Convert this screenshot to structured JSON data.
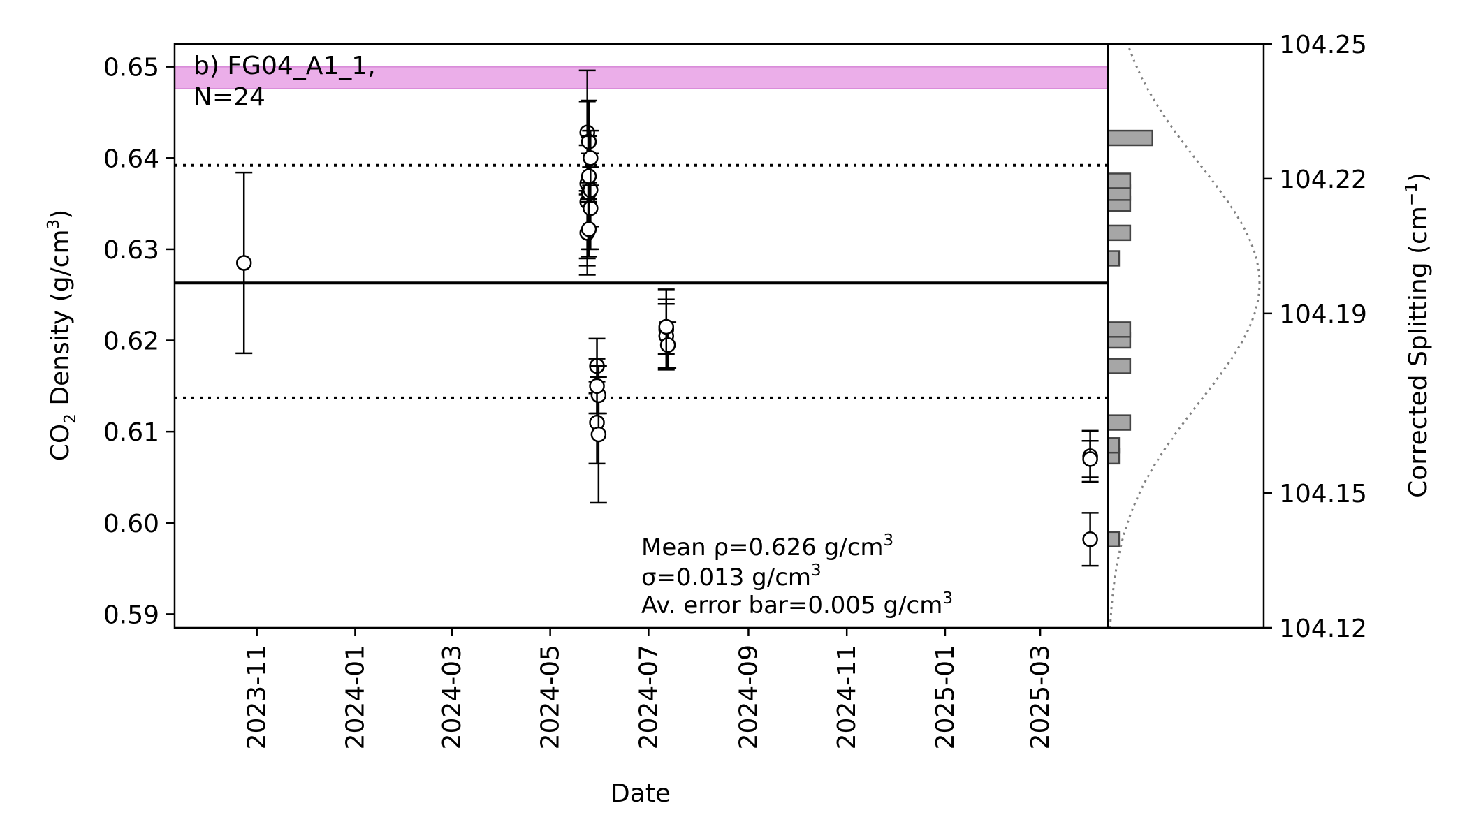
{
  "chart_data": {
    "type": "scatter",
    "panel_label": "b) FG04_A1_1,",
    "count_label": "N=24",
    "xlabel": "Date",
    "ylabel": {
      "prefix": "CO",
      "sub": "2",
      "suffix": " Density (g/cm",
      "sup": "3",
      "close": ")"
    },
    "y2label": {
      "prefix": "Corrected Splitting (cm",
      "sup": "−1",
      "close": ")"
    },
    "x_axis": {
      "type": "date",
      "range": [
        "2023-09-11",
        "2025-04-12"
      ],
      "ticks": [
        "2023-11",
        "2024-01",
        "2024-03",
        "2024-05",
        "2024-07",
        "2024-09",
        "2024-11",
        "2025-01",
        "2025-03"
      ]
    },
    "y_axis": {
      "range": [
        0.5885,
        0.6525
      ],
      "ticks": [
        0.59,
        0.6,
        0.61,
        0.62,
        0.63,
        0.64,
        0.65
      ],
      "tick_labels": [
        "0.59",
        "0.60",
        "0.61",
        "0.62",
        "0.63",
        "0.64",
        "0.65"
      ]
    },
    "y2_axis": {
      "range": [
        104.12,
        104.25
      ],
      "ticks": [
        104.12,
        104.15,
        104.19,
        104.22,
        104.25
      ],
      "tick_labels": [
        "104.12",
        "104.15",
        "104.19",
        "104.22",
        "104.25"
      ]
    },
    "mean": 0.6263,
    "sigma_lines": [
      0.6392,
      0.6137
    ],
    "reference_band": {
      "low": 0.6476,
      "high": 0.65,
      "color": "#ebaee9",
      "edge": "#d98cd9"
    },
    "points": [
      {
        "x": "2023-10-24",
        "y": 0.6285,
        "err": 0.0099
      },
      {
        "x": "2024-05-24",
        "y": 0.6428,
        "err": 0.0068
      },
      {
        "x": "2024-05-24",
        "y": 0.6372,
        "err": 0.009
      },
      {
        "x": "2024-05-24",
        "y": 0.6352,
        "err": 0.0062
      },
      {
        "x": "2024-05-24",
        "y": 0.6318,
        "err": 0.0046
      },
      {
        "x": "2024-05-25",
        "y": 0.6418,
        "err": 0.0045
      },
      {
        "x": "2024-05-25",
        "y": 0.6362,
        "err": 0.0062
      },
      {
        "x": "2024-05-26",
        "y": 0.6365,
        "err": 0.004
      },
      {
        "x": "2024-05-26",
        "y": 0.6345,
        "err": 0.0045
      },
      {
        "x": "2024-05-25",
        "y": 0.6322,
        "err": 0.003
      },
      {
        "x": "2024-05-25",
        "y": 0.638,
        "err": 0.0025
      },
      {
        "x": "2024-05-26",
        "y": 0.64,
        "err": 0.003
      },
      {
        "x": "2024-05-30",
        "y": 0.6172,
        "err": 0.003
      },
      {
        "x": "2024-05-30",
        "y": 0.611,
        "err": 0.0045
      },
      {
        "x": "2024-05-31",
        "y": 0.6097,
        "err": 0.0075
      },
      {
        "x": "2024-05-31",
        "y": 0.614,
        "err": 0.002
      },
      {
        "x": "2024-05-30",
        "y": 0.615,
        "err": 0.003
      },
      {
        "x": "2024-07-12",
        "y": 0.6212,
        "err": 0.0044
      },
      {
        "x": "2024-07-12",
        "y": 0.6205,
        "err": 0.0035
      },
      {
        "x": "2024-07-13",
        "y": 0.6195,
        "err": 0.0025
      },
      {
        "x": "2024-07-12",
        "y": 0.6215,
        "err": 0.003
      },
      {
        "x": "2025-04-01",
        "y": 0.6073,
        "err": 0.0028
      },
      {
        "x": "2025-04-01",
        "y": 0.5982,
        "err": 0.0029
      },
      {
        "x": "2025-04-01",
        "y": 0.607,
        "err": 0.002
      }
    ],
    "histogram": {
      "bin_centers": [
        0.5982,
        0.6073,
        0.6085,
        0.611,
        0.6172,
        0.62,
        0.6212,
        0.629,
        0.6318,
        0.635,
        0.6362,
        0.6375,
        0.6422
      ],
      "bin_width": 0.0016,
      "counts": [
        1,
        1,
        1,
        2,
        2,
        2,
        2,
        1,
        2,
        2,
        2,
        2,
        4
      ],
      "bar_color": "#a6a6a6",
      "edge_color": "#444444"
    },
    "gaussian": {
      "mean": 0.6263,
      "sigma": 0.013,
      "color": "#808080"
    },
    "annotation": {
      "line1": "Mean ρ=0.626 g/cm",
      "line2": "σ=0.013 g/cm",
      "line3": "Av. error bar=0.005 g/cm",
      "sup": "3"
    }
  }
}
